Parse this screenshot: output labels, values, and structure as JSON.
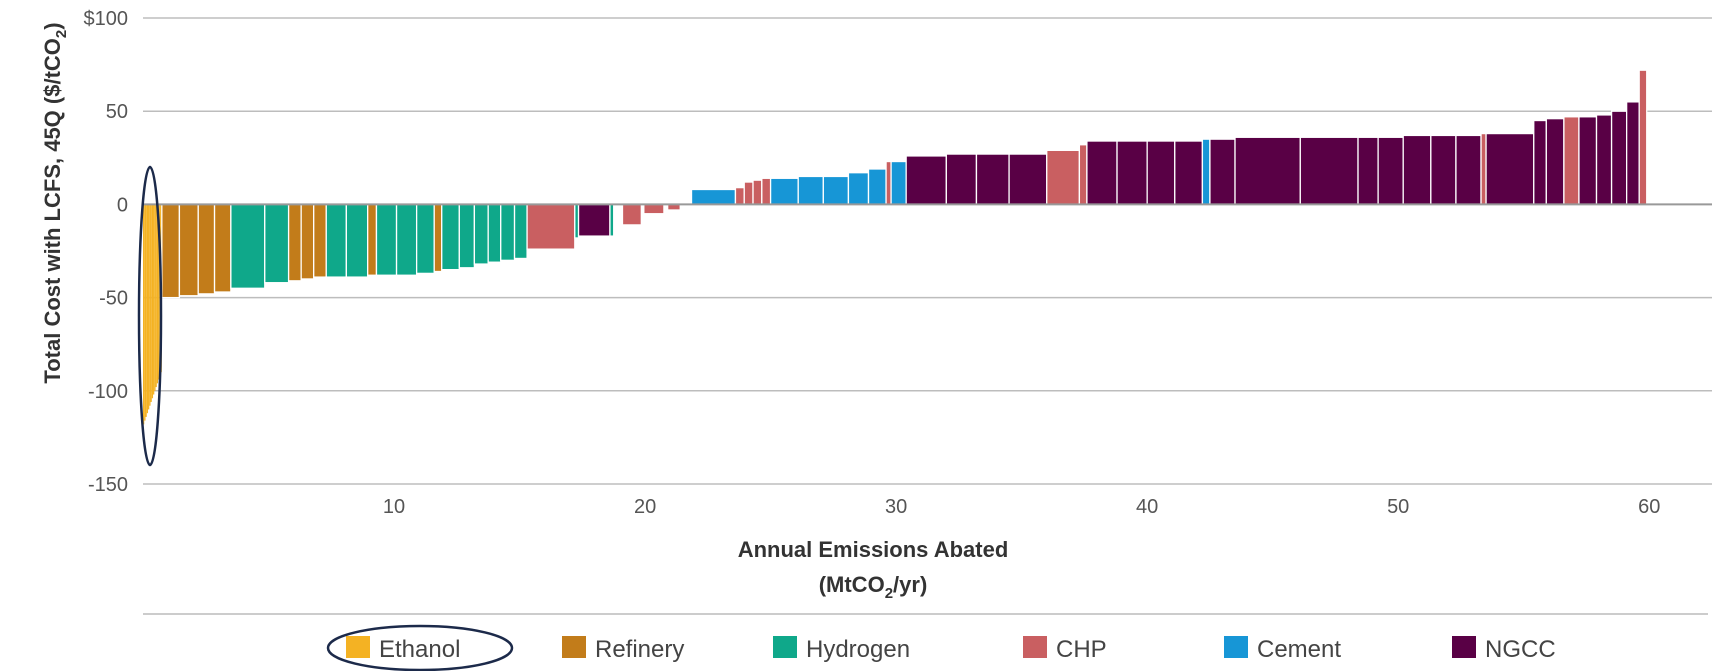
{
  "chart_data": {
    "type": "bar",
    "title": "",
    "xlabel_line1": "Annual Emissions Abated",
    "xlabel_line2": "(MtCO",
    "xlabel_line2_sub": "2",
    "xlabel_line2_end": "/yr)",
    "ylabel": "Total Cost with LCFS,  45Q ($/tCO",
    "ylabel_sub": "2",
    "ylabel_end": ")",
    "xlim": [
      0,
      62.5
    ],
    "ylim": [
      -150,
      100
    ],
    "x_ticks": [
      {
        "value": 10,
        "label": "10"
      },
      {
        "value": 20,
        "label": "20"
      },
      {
        "value": 30,
        "label": "30"
      },
      {
        "value": 40,
        "label": "40"
      },
      {
        "value": 50,
        "label": "50"
      },
      {
        "value": 60,
        "label": "60"
      }
    ],
    "y_ticks": [
      {
        "value": 100,
        "label": "$100"
      },
      {
        "value": 50,
        "label": "50"
      },
      {
        "value": 0,
        "label": "0"
      },
      {
        "value": -50,
        "label": "-50"
      },
      {
        "value": -100,
        "label": "-100"
      },
      {
        "value": -150,
        "label": "-150"
      }
    ],
    "grid": "horizontal",
    "legend_position": "bottom",
    "legend": [
      {
        "name": "Ethanol",
        "color": "#F4B223"
      },
      {
        "name": "Refinery",
        "color": "#C27C1A"
      },
      {
        "name": "Hydrogen",
        "color": "#0FA88A"
      },
      {
        "name": "CHP",
        "color": "#C95F61"
      },
      {
        "name": "Cement",
        "color": "#1796D6"
      },
      {
        "name": "NGCC",
        "color": "#590045"
      }
    ],
    "annotations": [
      "ellipse highlighting Ethanol bars",
      "ellipse highlighting Ethanol legend entry"
    ],
    "bars": [
      {
        "sector": "Ethanol",
        "x0": 0.0,
        "x1": 0.05,
        "value": -118
      },
      {
        "sector": "Ethanol",
        "x0": 0.05,
        "x1": 0.1,
        "value": -116
      },
      {
        "sector": "Ethanol",
        "x0": 0.1,
        "x1": 0.15,
        "value": -114
      },
      {
        "sector": "Ethanol",
        "x0": 0.15,
        "x1": 0.2,
        "value": -112
      },
      {
        "sector": "Ethanol",
        "x0": 0.2,
        "x1": 0.25,
        "value": -110
      },
      {
        "sector": "Ethanol",
        "x0": 0.25,
        "x1": 0.3,
        "value": -108
      },
      {
        "sector": "Ethanol",
        "x0": 0.3,
        "x1": 0.35,
        "value": -106
      },
      {
        "sector": "Ethanol",
        "x0": 0.35,
        "x1": 0.4,
        "value": -104
      },
      {
        "sector": "Ethanol",
        "x0": 0.4,
        "x1": 0.45,
        "value": -102
      },
      {
        "sector": "Ethanol",
        "x0": 0.45,
        "x1": 0.5,
        "value": -100
      },
      {
        "sector": "Ethanol",
        "x0": 0.5,
        "x1": 0.55,
        "value": -98
      },
      {
        "sector": "Ethanol",
        "x0": 0.55,
        "x1": 0.6,
        "value": -96
      },
      {
        "sector": "Ethanol",
        "x0": 0.6,
        "x1": 0.65,
        "value": -94
      },
      {
        "sector": "Ethanol",
        "x0": 0.65,
        "x1": 0.7,
        "value": -92
      },
      {
        "sector": "Ethanol",
        "x0": 0.7,
        "x1": 0.75,
        "value": -90
      },
      {
        "sector": "Refinery",
        "x0": 0.75,
        "x1": 1.45,
        "value": -50
      },
      {
        "sector": "Refinery",
        "x0": 1.45,
        "x1": 2.2,
        "value": -49
      },
      {
        "sector": "Refinery",
        "x0": 2.2,
        "x1": 2.85,
        "value": -48
      },
      {
        "sector": "Refinery",
        "x0": 2.85,
        "x1": 3.5,
        "value": -47
      },
      {
        "sector": "Hydrogen",
        "x0": 3.5,
        "x1": 4.85,
        "value": -45
      },
      {
        "sector": "Hydrogen",
        "x0": 4.85,
        "x1": 5.8,
        "value": -42
      },
      {
        "sector": "Refinery",
        "x0": 5.8,
        "x1": 6.3,
        "value": -41
      },
      {
        "sector": "Refinery",
        "x0": 6.3,
        "x1": 6.8,
        "value": -40
      },
      {
        "sector": "Refinery",
        "x0": 6.8,
        "x1": 7.3,
        "value": -39
      },
      {
        "sector": "Hydrogen",
        "x0": 7.3,
        "x1": 8.1,
        "value": -39
      },
      {
        "sector": "Hydrogen",
        "x0": 8.1,
        "x1": 8.95,
        "value": -39
      },
      {
        "sector": "Refinery",
        "x0": 8.95,
        "x1": 9.3,
        "value": -38
      },
      {
        "sector": "Hydrogen",
        "x0": 9.3,
        "x1": 10.1,
        "value": -38
      },
      {
        "sector": "Hydrogen",
        "x0": 10.1,
        "x1": 10.9,
        "value": -38
      },
      {
        "sector": "Hydrogen",
        "x0": 10.9,
        "x1": 11.6,
        "value": -37
      },
      {
        "sector": "Refinery",
        "x0": 11.6,
        "x1": 11.9,
        "value": -36
      },
      {
        "sector": "Hydrogen",
        "x0": 11.9,
        "x1": 12.6,
        "value": -35
      },
      {
        "sector": "Hydrogen",
        "x0": 12.6,
        "x1": 13.2,
        "value": -34
      },
      {
        "sector": "Hydrogen",
        "x0": 13.2,
        "x1": 13.75,
        "value": -32
      },
      {
        "sector": "Hydrogen",
        "x0": 13.75,
        "x1": 14.25,
        "value": -31
      },
      {
        "sector": "Hydrogen",
        "x0": 14.25,
        "x1": 14.8,
        "value": -30
      },
      {
        "sector": "Hydrogen",
        "x0": 14.8,
        "x1": 15.3,
        "value": -29
      },
      {
        "sector": "CHP",
        "x0": 15.3,
        "x1": 17.2,
        "value": -24
      },
      {
        "sector": "Hydrogen",
        "x0": 17.2,
        "x1": 17.35,
        "value": -18
      },
      {
        "sector": "NGCC",
        "x0": 17.35,
        "x1": 18.6,
        "value": -17
      },
      {
        "sector": "Hydrogen",
        "x0": 18.6,
        "x1": 18.75,
        "value": -17
      },
      {
        "sector": "CHP",
        "x0": 19.1,
        "x1": 19.85,
        "value": -11
      },
      {
        "sector": "CHP",
        "x0": 19.95,
        "x1": 20.75,
        "value": -5
      },
      {
        "sector": "CHP",
        "x0": 20.9,
        "x1": 21.4,
        "value": -3
      },
      {
        "sector": "Cement",
        "x0": 21.85,
        "x1": 23.6,
        "value": 8
      },
      {
        "sector": "CHP",
        "x0": 23.6,
        "x1": 23.95,
        "value": 9
      },
      {
        "sector": "CHP",
        "x0": 23.95,
        "x1": 24.3,
        "value": 12
      },
      {
        "sector": "CHP",
        "x0": 24.3,
        "x1": 24.65,
        "value": 13
      },
      {
        "sector": "CHP",
        "x0": 24.65,
        "x1": 25.0,
        "value": 14
      },
      {
        "sector": "Cement",
        "x0": 25.0,
        "x1": 26.1,
        "value": 14
      },
      {
        "sector": "Cement",
        "x0": 26.1,
        "x1": 27.1,
        "value": 15
      },
      {
        "sector": "Cement",
        "x0": 27.1,
        "x1": 28.1,
        "value": 15
      },
      {
        "sector": "Cement",
        "x0": 28.1,
        "x1": 28.9,
        "value": 17
      },
      {
        "sector": "Cement",
        "x0": 28.9,
        "x1": 29.6,
        "value": 19
      },
      {
        "sector": "CHP",
        "x0": 29.6,
        "x1": 29.8,
        "value": 23
      },
      {
        "sector": "Cement",
        "x0": 29.8,
        "x1": 30.4,
        "value": 23
      },
      {
        "sector": "NGCC",
        "x0": 30.4,
        "x1": 32.0,
        "value": 26
      },
      {
        "sector": "NGCC",
        "x0": 32.0,
        "x1": 33.2,
        "value": 27
      },
      {
        "sector": "NGCC",
        "x0": 33.2,
        "x1": 34.5,
        "value": 27
      },
      {
        "sector": "NGCC",
        "x0": 34.5,
        "x1": 36.0,
        "value": 27
      },
      {
        "sector": "CHP",
        "x0": 36.0,
        "x1": 37.3,
        "value": 29
      },
      {
        "sector": "CHP",
        "x0": 37.3,
        "x1": 37.6,
        "value": 32
      },
      {
        "sector": "NGCC",
        "x0": 37.6,
        "x1": 38.8,
        "value": 34
      },
      {
        "sector": "NGCC",
        "x0": 38.8,
        "x1": 40.0,
        "value": 34
      },
      {
        "sector": "NGCC",
        "x0": 40.0,
        "x1": 41.1,
        "value": 34
      },
      {
        "sector": "NGCC",
        "x0": 41.1,
        "x1": 42.2,
        "value": 34
      },
      {
        "sector": "Cement",
        "x0": 42.2,
        "x1": 42.5,
        "value": 35
      },
      {
        "sector": "NGCC",
        "x0": 42.5,
        "x1": 43.5,
        "value": 35
      },
      {
        "sector": "NGCC",
        "x0": 43.5,
        "x1": 46.1,
        "value": 36
      },
      {
        "sector": "NGCC",
        "x0": 46.1,
        "x1": 48.4,
        "value": 36
      },
      {
        "sector": "NGCC",
        "x0": 48.4,
        "x1": 49.2,
        "value": 36
      },
      {
        "sector": "NGCC",
        "x0": 49.2,
        "x1": 50.2,
        "value": 36
      },
      {
        "sector": "NGCC",
        "x0": 50.2,
        "x1": 51.3,
        "value": 37
      },
      {
        "sector": "NGCC",
        "x0": 51.3,
        "x1": 52.3,
        "value": 37
      },
      {
        "sector": "NGCC",
        "x0": 52.3,
        "x1": 53.3,
        "value": 37
      },
      {
        "sector": "CHP",
        "x0": 53.3,
        "x1": 53.5,
        "value": 38
      },
      {
        "sector": "NGCC",
        "x0": 53.5,
        "x1": 55.4,
        "value": 38
      },
      {
        "sector": "NGCC",
        "x0": 55.4,
        "x1": 55.9,
        "value": 45
      },
      {
        "sector": "NGCC",
        "x0": 55.9,
        "x1": 56.6,
        "value": 46
      },
      {
        "sector": "CHP",
        "x0": 56.6,
        "x1": 57.2,
        "value": 47
      },
      {
        "sector": "NGCC",
        "x0": 57.2,
        "x1": 57.9,
        "value": 47
      },
      {
        "sector": "NGCC",
        "x0": 57.9,
        "x1": 58.5,
        "value": 48
      },
      {
        "sector": "NGCC",
        "x0": 58.5,
        "x1": 59.1,
        "value": 50
      },
      {
        "sector": "NGCC",
        "x0": 59.1,
        "x1": 59.6,
        "value": 55
      },
      {
        "sector": "CHP",
        "x0": 59.6,
        "x1": 59.9,
        "value": 72
      }
    ]
  }
}
